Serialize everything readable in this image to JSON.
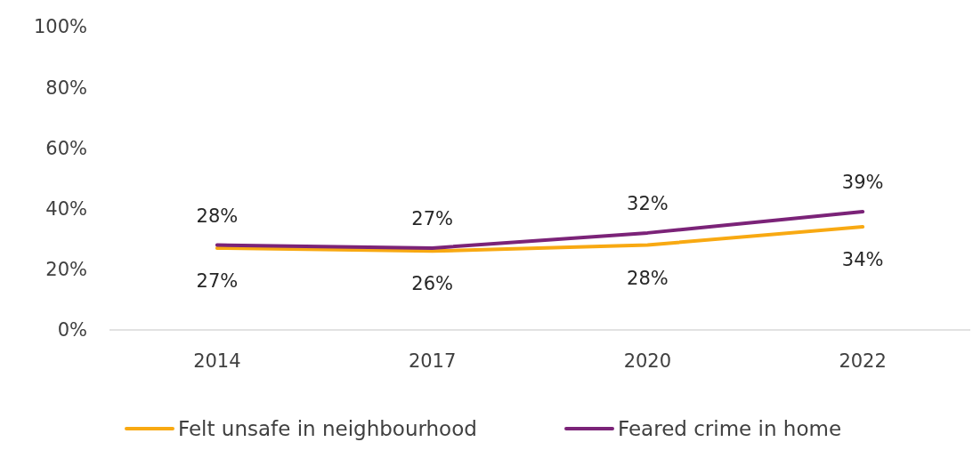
{
  "chart_data": {
    "type": "line",
    "categories": [
      "2014",
      "2017",
      "2020",
      "2022"
    ],
    "series": [
      {
        "name": "Felt unsafe in neighbourhood",
        "color": "#f8a912",
        "values": [
          27,
          26,
          28,
          34
        ],
        "value_labels": [
          "27%",
          "26%",
          "28%",
          "34%"
        ]
      },
      {
        "name": "Feared crime in home",
        "color": "#7b2378",
        "values": [
          28,
          27,
          32,
          39
        ],
        "value_labels": [
          "28%",
          "27%",
          "32%",
          "39%"
        ]
      }
    ],
    "ylim": [
      0,
      100
    ],
    "yticks": [
      {
        "value": 0,
        "label": "0%"
      },
      {
        "value": 20,
        "label": "20%"
      },
      {
        "value": 40,
        "label": "40%"
      },
      {
        "value": 60,
        "label": "60%"
      },
      {
        "value": 80,
        "label": "80%"
      },
      {
        "value": 100,
        "label": "100%"
      }
    ],
    "grid": false,
    "legend": "bottom",
    "marker": "none",
    "line_style": "solid"
  }
}
